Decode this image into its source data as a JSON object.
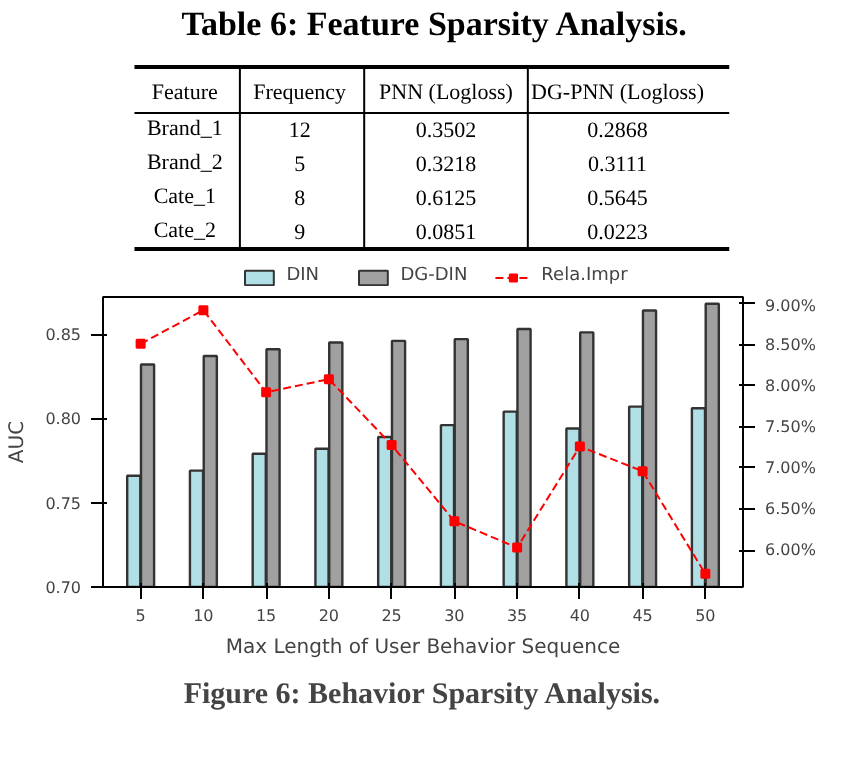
{
  "chart_data": [
    {
      "type": "other",
      "title": "Table 6: Feature Sparsity Analysis.",
      "categories": [
        "Feature",
        "Frequency",
        "PNN (Logloss)",
        "DG-PNN (Logloss)"
      ],
      "y_categories": [
        "Brand_1",
        "Brand_2",
        "Cate_1",
        "Cate_2"
      ],
      "cell_labels": [
        [
          "12",
          "0.3502",
          "0.2868"
        ],
        [
          "5",
          "0.3218",
          "0.3111"
        ],
        [
          "8",
          "0.6125",
          "0.5645"
        ],
        [
          "9",
          "0.0851",
          "0.0223"
        ]
      ]
    },
    {
      "type": "bar",
      "title": "Figure 6: Behavior Sparsity Analysis.",
      "xlabel": "Max Length of User Behavior Sequence",
      "ylabel": "AUC",
      "categories": [
        "5",
        "10",
        "15",
        "20",
        "25",
        "30",
        "35",
        "40",
        "45",
        "50"
      ],
      "ylim": [
        0.7,
        0.872
      ],
      "yticks": [
        {
          "value": 0.7,
          "label": "0.70"
        },
        {
          "value": 0.75,
          "label": "0.75"
        },
        {
          "value": 0.8,
          "label": "0.80"
        },
        {
          "value": 0.85,
          "label": "0.85"
        }
      ],
      "y2lim": [
        5.55,
        9.08
      ],
      "y2ticks": [
        {
          "value": 6.0,
          "label": "6.00%"
        },
        {
          "value": 6.5,
          "label": "6.50%"
        },
        {
          "value": 7.0,
          "label": "7.00%"
        },
        {
          "value": 7.5,
          "label": "7.50%"
        },
        {
          "value": 8.0,
          "label": "8.00%"
        },
        {
          "value": 8.5,
          "label": "8.50%"
        },
        {
          "value": 9.0,
          "label": "9.00%"
        }
      ],
      "legend": "top",
      "series": [
        {
          "name": "DIN",
          "color": "#b0e0e6",
          "values": [
            0.766,
            0.769,
            0.779,
            0.782,
            0.789,
            0.796,
            0.804,
            0.794,
            0.807,
            0.806
          ]
        },
        {
          "name": "DG-DIN",
          "color": "#a0a0a0",
          "values": [
            0.832,
            0.837,
            0.841,
            0.845,
            0.846,
            0.847,
            0.853,
            0.851,
            0.864,
            0.868
          ]
        },
        {
          "name": "Rela.Impr",
          "type": "line",
          "axis": "y2",
          "color": "#ff0000",
          "marker": "square",
          "line_style": "dashed",
          "values": [
            8.51,
            8.92,
            7.92,
            8.08,
            7.28,
            6.35,
            6.03,
            7.26,
            6.96,
            5.71
          ]
        }
      ]
    }
  ]
}
